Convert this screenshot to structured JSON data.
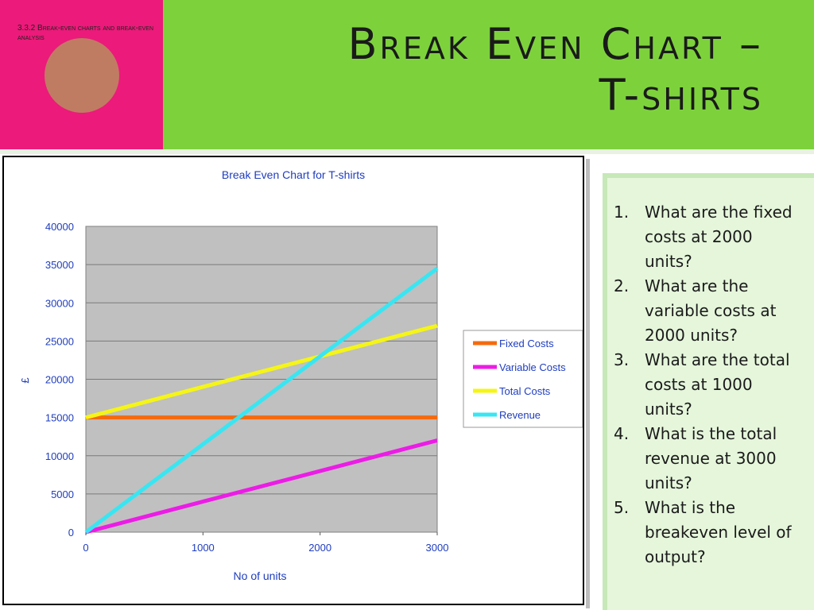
{
  "header": {
    "section_label": "3.3.2 Break-even charts and break-even analysis",
    "title_line1": "Break Even Chart –",
    "title_line2": "T-shirts"
  },
  "colors": {
    "pink": "#ec1a7a",
    "green": "#7dd23c",
    "plot_bg": "#c0c0c0",
    "fixed": "#f46b0f",
    "variable": "#ec1ce6",
    "total": "#f5f516",
    "revenue": "#38e6f2",
    "axis_text": "#1f3dbf"
  },
  "chart_data": {
    "type": "line",
    "title": "Break Even Chart for T-shirts",
    "xlabel": "No of units",
    "ylabel": "£",
    "x": [
      0,
      3000
    ],
    "xlim": [
      0,
      3000
    ],
    "ylim": [
      0,
      40000
    ],
    "x_ticks": [
      "0",
      "1000",
      "2000",
      "3000"
    ],
    "y_ticks": [
      "0",
      "5000",
      "10000",
      "15000",
      "20000",
      "25000",
      "30000",
      "35000",
      "40000"
    ],
    "grid": true,
    "legend_position": "right",
    "series": [
      {
        "name": "Fixed Costs",
        "values": [
          15000,
          15000
        ],
        "color": "#f46b0f"
      },
      {
        "name": "Variable Costs",
        "values": [
          0,
          12000
        ],
        "color": "#ec1ce6"
      },
      {
        "name": "Total Costs",
        "values": [
          15000,
          27000
        ],
        "color": "#f5f516"
      },
      {
        "name": "Revenue",
        "values": [
          0,
          34500
        ],
        "color": "#38e6f2"
      }
    ]
  },
  "questions": [
    {
      "num": "1.",
      "text": "What are the fixed costs at 2000 units?"
    },
    {
      "num": "2.",
      "text": "What are the variable costs at 2000 units?"
    },
    {
      "num": "3.",
      "text": "What are the total costs at 1000 units?"
    },
    {
      "num": "4.",
      "text": "What is the total revenue at 3000 units?"
    },
    {
      "num": "5.",
      "text": "What is the breakeven level of output?"
    }
  ]
}
